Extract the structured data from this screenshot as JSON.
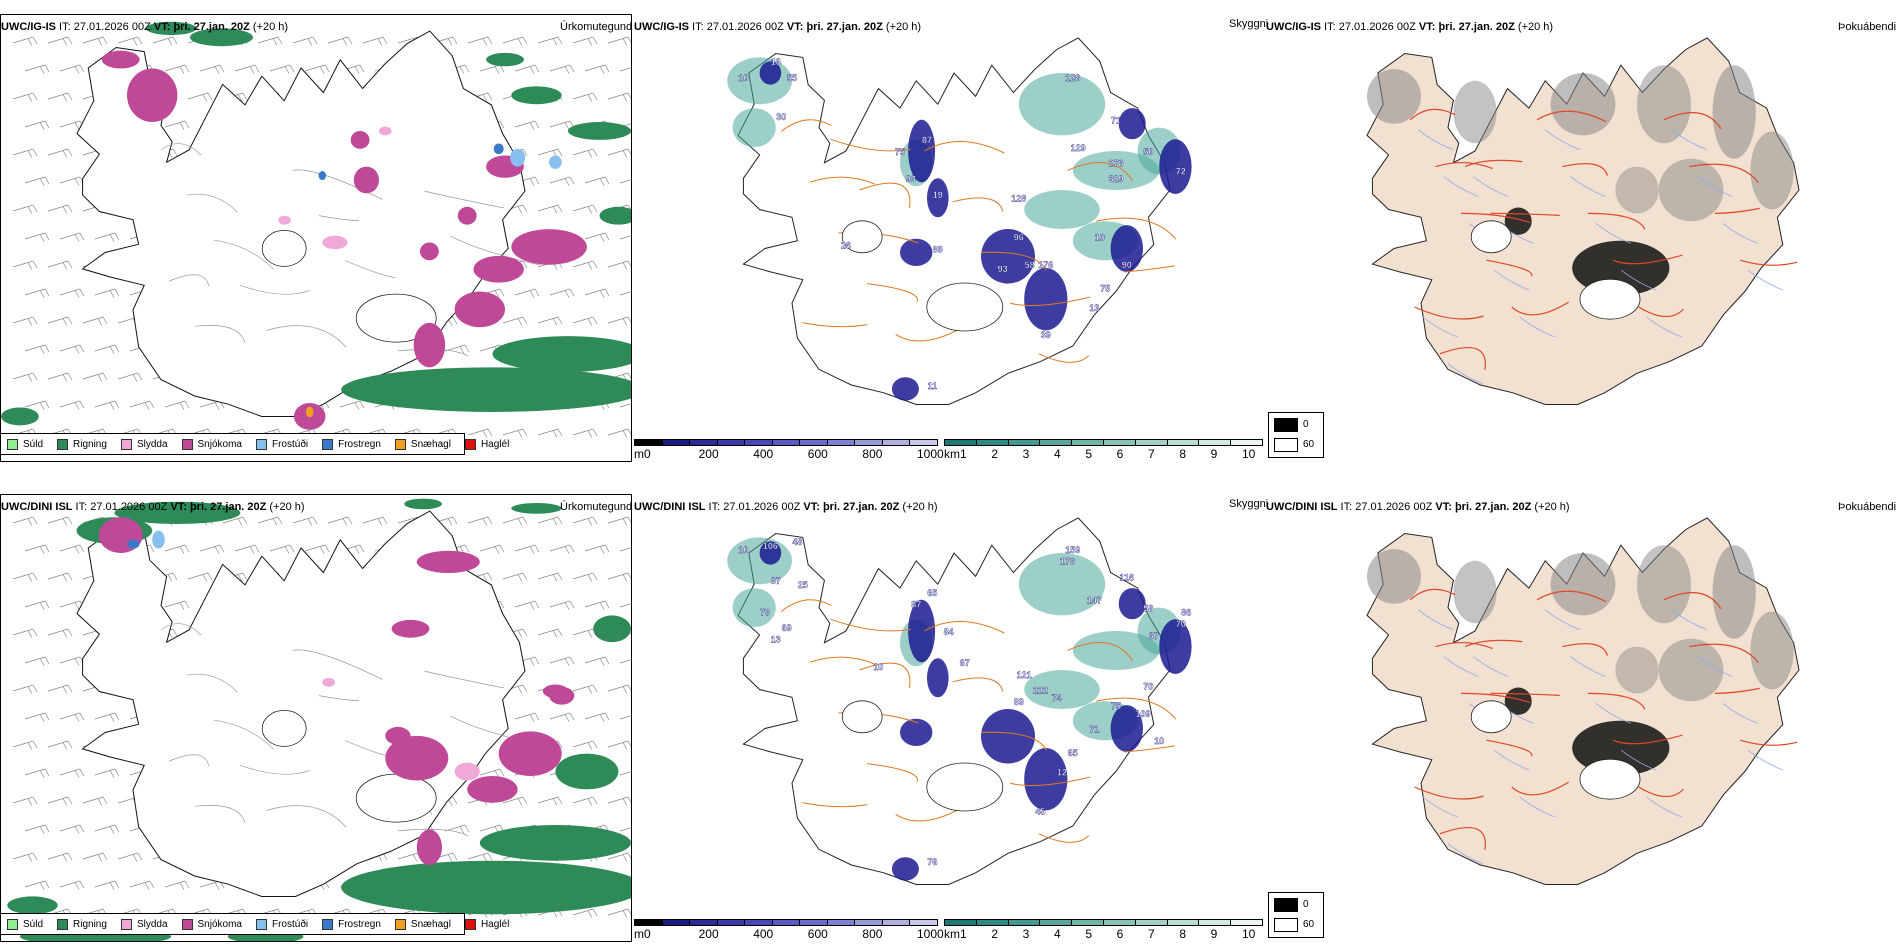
{
  "rows": [
    {
      "precip_panel": {
        "model": "UWC/IG-IS",
        "it_label": " IT: ",
        "it_value": "27.01.2026 00Z",
        "vt_label": " VT: ",
        "vt_value": "þri. 27.jan. 20Z",
        "lead": " (+20 h)",
        "right_label": "Úrkomutegund"
      },
      "cloud_panel": {
        "model": "UWC/IG-IS",
        "it_label": " IT: ",
        "it_value": "27.01.2026 00Z",
        "vt_label": " VT: ",
        "vt_value": "þri. 27.jan. 20Z",
        "lead": " (+20 h)",
        "right_label": "Skyggni",
        "cloud_values": [
          "16",
          "10",
          "55",
          "30",
          "75",
          "87",
          "93",
          "19",
          "128",
          "71",
          "129",
          "50",
          "72",
          "278",
          "329",
          "128",
          "90",
          "89",
          "96",
          "93",
          "58",
          "176",
          "10",
          "75",
          "13",
          "39",
          "11",
          "26"
        ]
      },
      "fog_panel": {
        "model": "UWC/IG-IS",
        "it_label": " IT: ",
        "it_value": "27.01.2026 00Z",
        "vt_label": " VT: ",
        "vt_value": "þri. 27.jan. 20Z",
        "lead": " (+20 h)",
        "right_label": "Þokuábendi"
      }
    },
    {
      "precip_panel": {
        "model": "UWC/DINI ISL",
        "it_label": " IT: ",
        "it_value": "27.01.2026 00Z",
        "vt_label": " VT: ",
        "vt_value": "þri. 27.jan. 20Z",
        "lead": " (+20 h)",
        "right_label": "Úrkomutegund"
      },
      "cloud_panel": {
        "model": "UWC/DINI ISL",
        "it_label": " IT: ",
        "it_value": "27.01.2026 00Z",
        "vt_label": " VT: ",
        "vt_value": "þri. 27.jan. 20Z",
        "lead": " (+20 h)",
        "right_label": "Skyggni",
        "cloud_values": [
          "10",
          "106",
          "48",
          "87",
          "25",
          "79",
          "69",
          "13",
          "87",
          "65",
          "84",
          "159",
          "178",
          "116",
          "147",
          "58",
          "86",
          "70",
          "67",
          "121",
          "222",
          "89",
          "74",
          "71",
          "65",
          "75",
          "109",
          "70",
          "10",
          "12",
          "45",
          "76",
          "67",
          "10"
        ]
      },
      "fog_panel": {
        "model": "UWC/DINI ISL",
        "it_label": " IT: ",
        "it_value": "27.01.2026 00Z",
        "vt_label": " VT: ",
        "vt_value": "þri. 27.jan. 20Z",
        "lead": " (+20 h)",
        "right_label": "Þokuábendi"
      }
    }
  ],
  "precip_legend": [
    {
      "label": "Súld",
      "color": "#90ee90"
    },
    {
      "label": "Rigning",
      "color": "#2e8b57"
    },
    {
      "label": "Slydda",
      "color": "#f0a8d8"
    },
    {
      "label": "Snjókoma",
      "color": "#c04898"
    },
    {
      "label": "Frostúði",
      "color": "#87bfef"
    },
    {
      "label": "Frostregn",
      "color": "#3a78c8"
    },
    {
      "label": "Snæhagl",
      "color": "#f0a020"
    },
    {
      "label": "Haglél",
      "color": "#e01010"
    }
  ],
  "height_bar": {
    "unit": "m",
    "ticks": [
      "0",
      "200",
      "400",
      "600",
      "800",
      "1000"
    ],
    "colors": [
      "#000000",
      "#1a1a80",
      "#2a2a98",
      "#3a3aa8",
      "#4848b4",
      "#5a5ac0",
      "#6c6cc8",
      "#8080d0",
      "#9898d8",
      "#b0b0e0",
      "#c8c8ea"
    ]
  },
  "vis_bar": {
    "unit": "km",
    "ticks": [
      "1",
      "2",
      "3",
      "4",
      "5",
      "6",
      "7",
      "8",
      "9",
      "10"
    ],
    "colors": [
      "#1e7a72",
      "#2e8a80",
      "#42988e",
      "#58a69c",
      "#70b4aa",
      "#88c2b8",
      "#a0d0c6",
      "#b8ddd4",
      "#d0eae4",
      "#eaf6f2"
    ]
  },
  "fog_legend": {
    "items": [
      {
        "label": "0",
        "color": "#000000"
      },
      {
        "label": "60",
        "color": "#ffffff"
      }
    ]
  }
}
